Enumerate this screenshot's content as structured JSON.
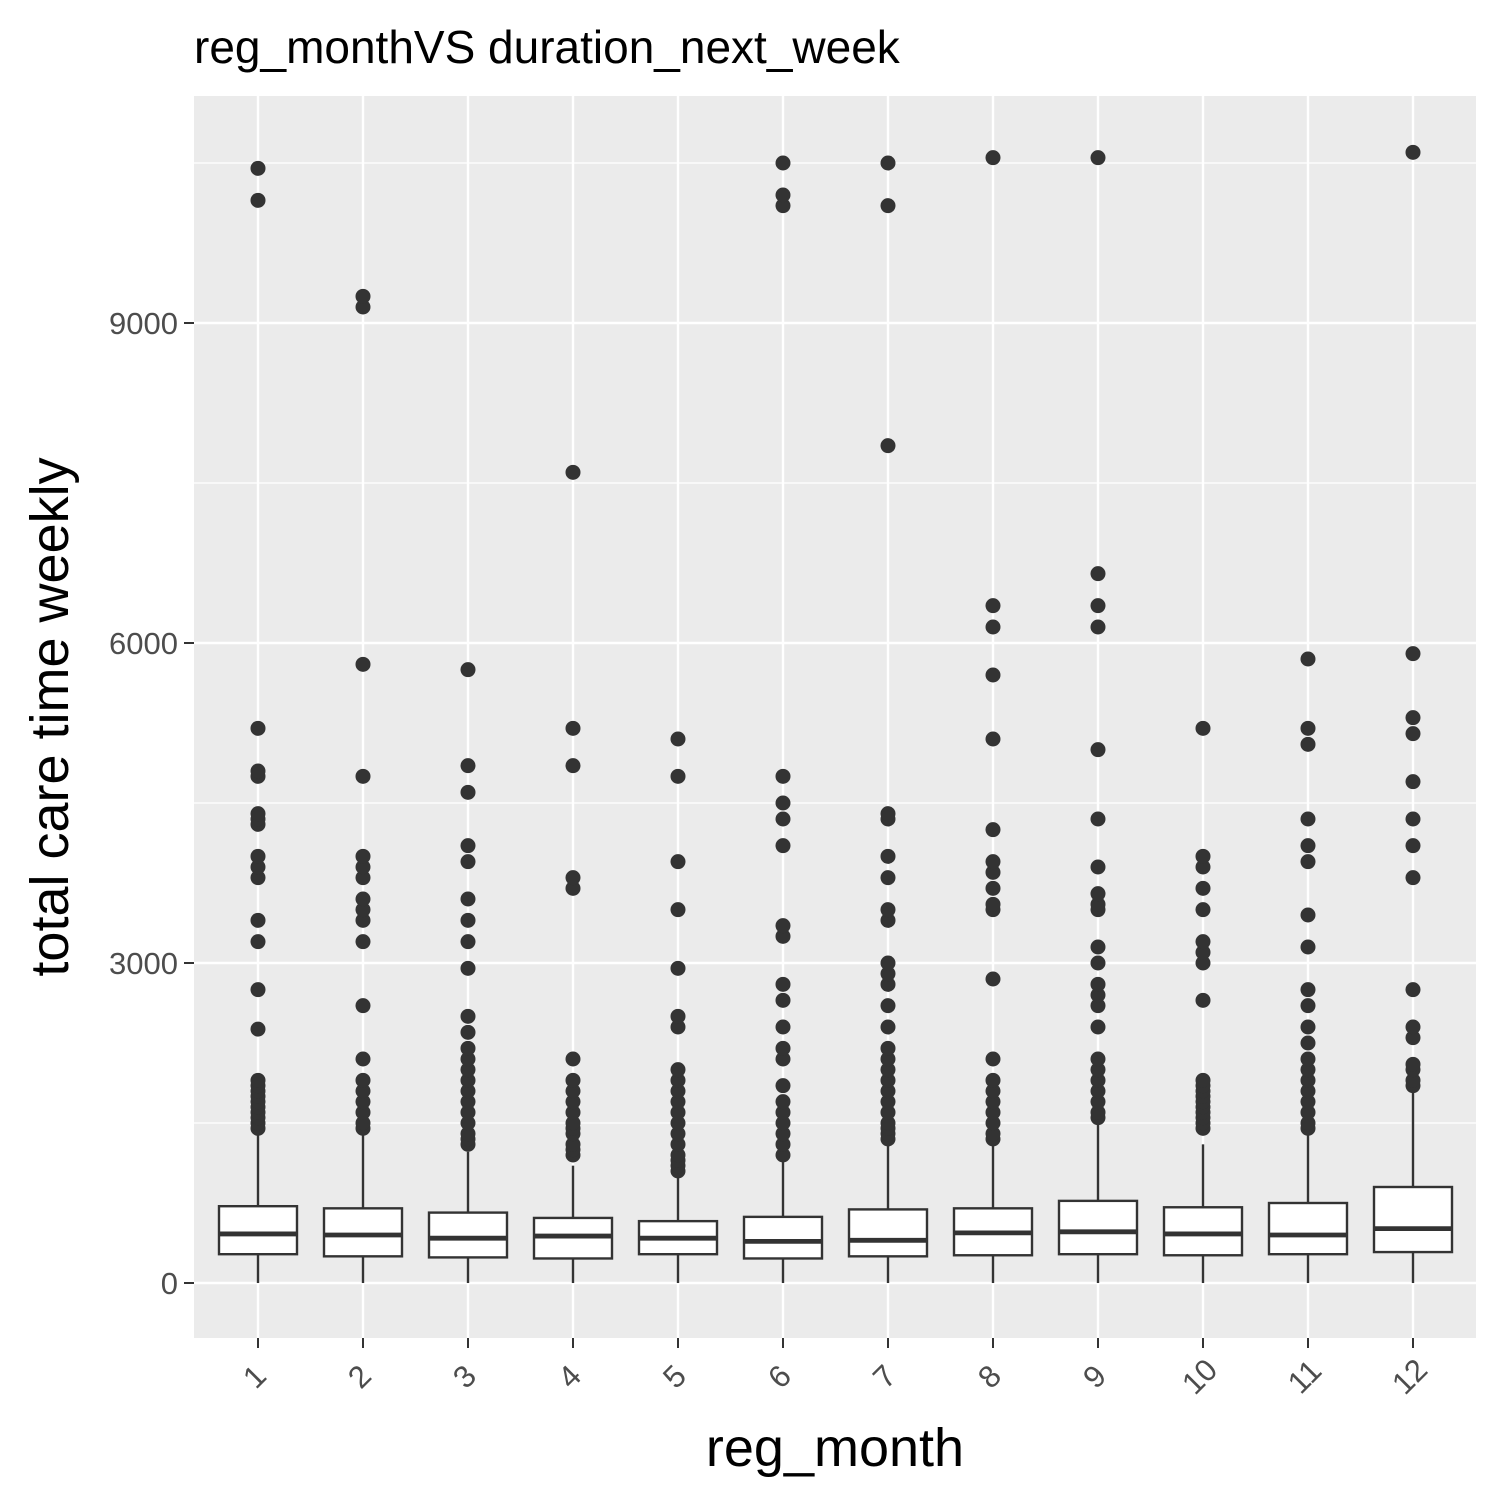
{
  "chart_data": {
    "type": "box",
    "title": "reg_monthVS duration_next_week",
    "xlabel": "reg_month",
    "ylabel": "total care time weekly",
    "categories": [
      "1",
      "2",
      "3",
      "4",
      "5",
      "6",
      "7",
      "8",
      "9",
      "10",
      "11",
      "12"
    ],
    "yticks": [
      "0",
      "3000",
      "6000",
      "9000"
    ],
    "ylim": [
      -500,
      11000
    ],
    "grid": true,
    "legend": "none",
    "colors": {
      "panel": "#ebebeb",
      "grid": "#ffffff",
      "box_fill": "#ffffff",
      "stroke": "#333333",
      "tick_text": "#4d4d4d"
    },
    "boxes": [
      {
        "category": "1",
        "min": 0,
        "q1": 270,
        "median": 460,
        "q3": 720,
        "max": 1400,
        "outliers": [
          1450,
          1500,
          1550,
          1600,
          1650,
          1700,
          1750,
          1800,
          1850,
          1900,
          2380,
          2750,
          3200,
          3400,
          3800,
          3900,
          4000,
          4300,
          4350,
          4400,
          4750,
          4800,
          5200,
          10150,
          10450
        ]
      },
      {
        "category": "2",
        "min": 0,
        "q1": 250,
        "median": 450,
        "q3": 700,
        "max": 1400,
        "outliers": [
          1450,
          1500,
          1600,
          1700,
          1800,
          1900,
          2100,
          2600,
          3200,
          3400,
          3500,
          3600,
          3800,
          3900,
          4000,
          4750,
          5800,
          9150,
          9250
        ]
      },
      {
        "category": "3",
        "min": 0,
        "q1": 240,
        "median": 420,
        "q3": 660,
        "max": 1230,
        "outliers": [
          1300,
          1350,
          1400,
          1500,
          1600,
          1700,
          1800,
          1900,
          2000,
          2100,
          2200,
          2350,
          2500,
          2950,
          3200,
          3400,
          3600,
          3950,
          4100,
          4600,
          4850,
          5750
        ]
      },
      {
        "category": "4",
        "min": 0,
        "q1": 230,
        "median": 440,
        "q3": 610,
        "max": 1100,
        "outliers": [
          1200,
          1250,
          1300,
          1400,
          1450,
          1500,
          1600,
          1700,
          1800,
          1900,
          2100,
          3700,
          3800,
          4850,
          5200,
          7600
        ]
      },
      {
        "category": "5",
        "min": 0,
        "q1": 270,
        "median": 420,
        "q3": 580,
        "max": 1020,
        "outliers": [
          1050,
          1100,
          1150,
          1200,
          1300,
          1400,
          1500,
          1600,
          1700,
          1800,
          1900,
          2000,
          2400,
          2500,
          2950,
          3500,
          3950,
          4750,
          5100
        ]
      },
      {
        "category": "6",
        "min": 0,
        "q1": 230,
        "median": 390,
        "q3": 620,
        "max": 1150,
        "outliers": [
          1200,
          1300,
          1400,
          1500,
          1600,
          1700,
          1850,
          2100,
          2200,
          2400,
          2650,
          2800,
          3250,
          3350,
          4100,
          4350,
          4500,
          4750,
          10100,
          10200,
          10500
        ]
      },
      {
        "category": "7",
        "min": 0,
        "q1": 250,
        "median": 400,
        "q3": 690,
        "max": 1300,
        "outliers": [
          1350,
          1400,
          1450,
          1500,
          1600,
          1700,
          1800,
          1900,
          2000,
          2100,
          2200,
          2400,
          2600,
          2800,
          2900,
          3000,
          3400,
          3500,
          3800,
          4000,
          4350,
          4400,
          7850,
          10100,
          10500
        ]
      },
      {
        "category": "8",
        "min": 0,
        "q1": 260,
        "median": 470,
        "q3": 700,
        "max": 1300,
        "outliers": [
          1350,
          1400,
          1500,
          1600,
          1700,
          1800,
          1900,
          2100,
          2850,
          3500,
          3550,
          3700,
          3850,
          3950,
          4250,
          5100,
          5700,
          6150,
          6350,
          10550
        ]
      },
      {
        "category": "9",
        "min": 0,
        "q1": 270,
        "median": 480,
        "q3": 770,
        "max": 1500,
        "outliers": [
          1550,
          1600,
          1700,
          1800,
          1900,
          2000,
          2100,
          2400,
          2600,
          2700,
          2800,
          3000,
          3150,
          3500,
          3550,
          3650,
          3900,
          4350,
          5000,
          6150,
          6350,
          6650,
          10550
        ]
      },
      {
        "category": "10",
        "min": 0,
        "q1": 260,
        "median": 460,
        "q3": 710,
        "max": 1300,
        "outliers": [
          1450,
          1500,
          1550,
          1600,
          1650,
          1700,
          1750,
          1800,
          1850,
          1900,
          2650,
          3000,
          3100,
          3200,
          3500,
          3700,
          3900,
          4000,
          5200
        ]
      },
      {
        "category": "11",
        "min": 0,
        "q1": 270,
        "median": 450,
        "q3": 750,
        "max": 1400,
        "outliers": [
          1450,
          1500,
          1600,
          1700,
          1800,
          1900,
          2000,
          2100,
          2250,
          2400,
          2600,
          2750,
          3150,
          3450,
          3950,
          4100,
          4350,
          5050,
          5200,
          5850
        ]
      },
      {
        "category": "12",
        "min": 0,
        "q1": 290,
        "median": 510,
        "q3": 900,
        "max": 1800,
        "outliers": [
          1850,
          1900,
          2000,
          2050,
          2300,
          2400,
          2750,
          3800,
          4100,
          4350,
          4700,
          5150,
          5300,
          5900,
          10600
        ]
      }
    ]
  }
}
